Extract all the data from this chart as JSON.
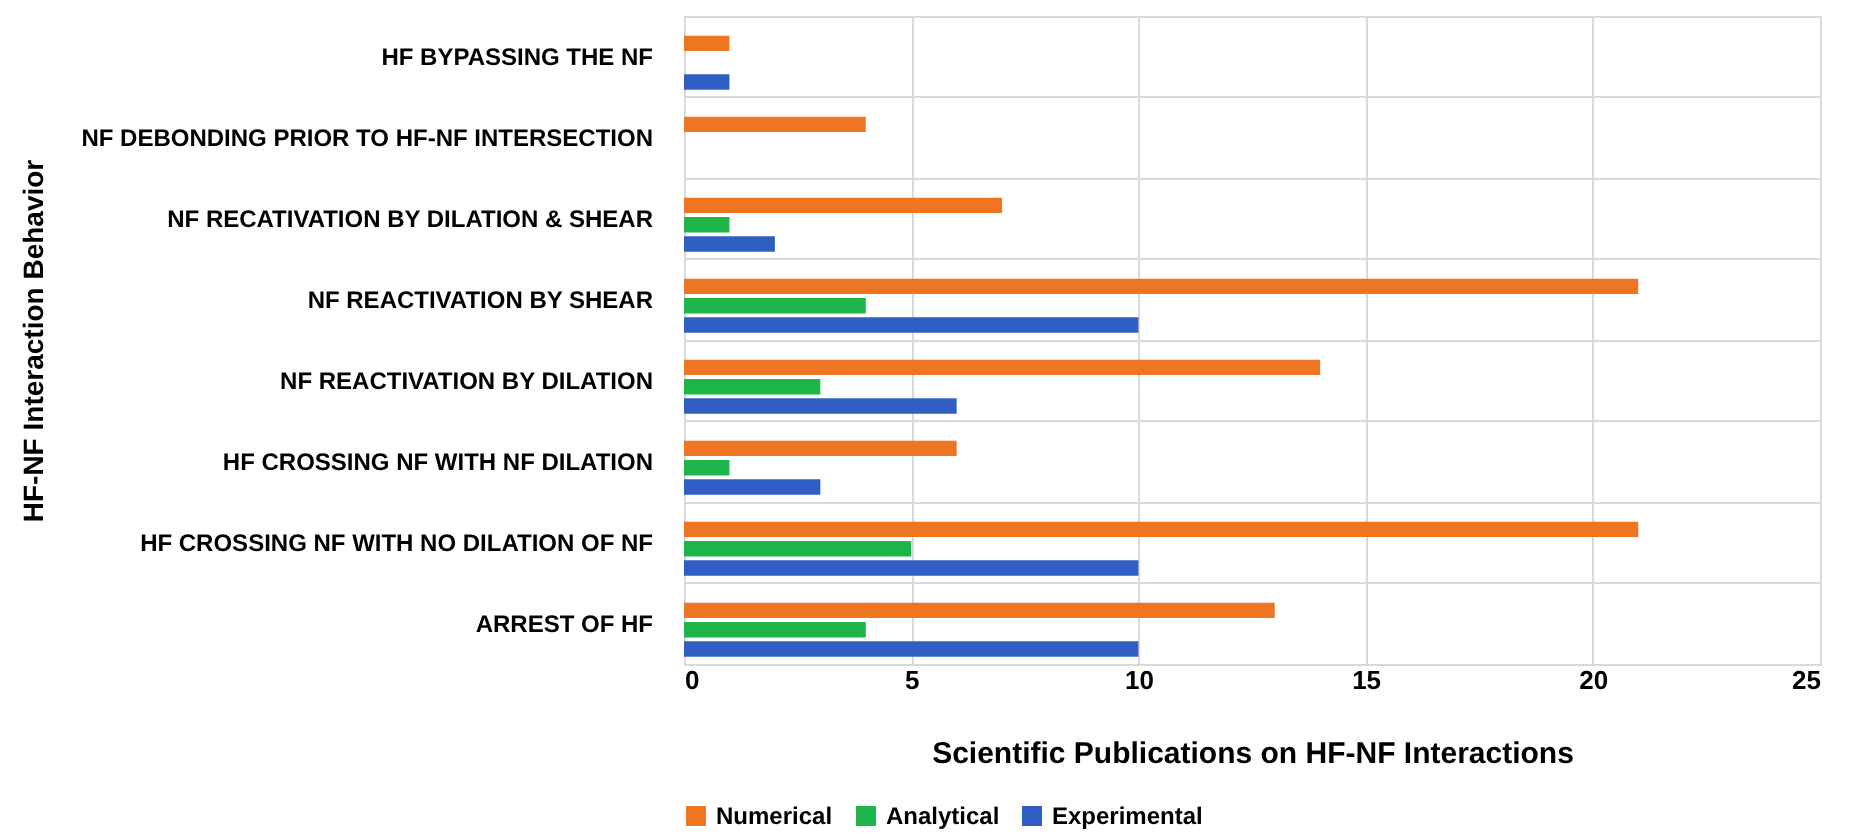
{
  "chart_data": {
    "type": "bar",
    "orientation": "horizontal",
    "xlabel": "Scientific Publications on HF-NF Interactions",
    "ylabel": "HF-NF Interaction Behavior",
    "categories": [
      "HF BYPASSING THE NF",
      "NF DEBONDING PRIOR TO HF-NF INTERSECTION",
      "NF RECATIVATION BY DILATION & SHEAR",
      "NF REACTIVATION BY SHEAR",
      "NF REACTIVATION BY DILATION",
      "HF CROSSING NF WITH NF DILATION",
      "HF CROSSING NF WITH NO DILATION OF NF",
      "ARREST OF HF"
    ],
    "series": [
      {
        "name": "Numerical",
        "color": "#ee7623",
        "values": [
          1,
          4,
          7,
          21,
          14,
          6,
          21,
          13
        ]
      },
      {
        "name": "Analytical",
        "color": "#1db54a",
        "values": [
          0,
          0,
          1,
          4,
          3,
          1,
          5,
          4
        ]
      },
      {
        "name": "Experimental",
        "color": "#2f5fc3",
        "values": [
          1,
          0,
          2,
          10,
          6,
          3,
          10,
          10
        ]
      }
    ],
    "xlim": [
      0,
      25
    ],
    "xticks": [
      0,
      5,
      10,
      15,
      20,
      25
    ],
    "grid": true,
    "legend": "bottom"
  }
}
